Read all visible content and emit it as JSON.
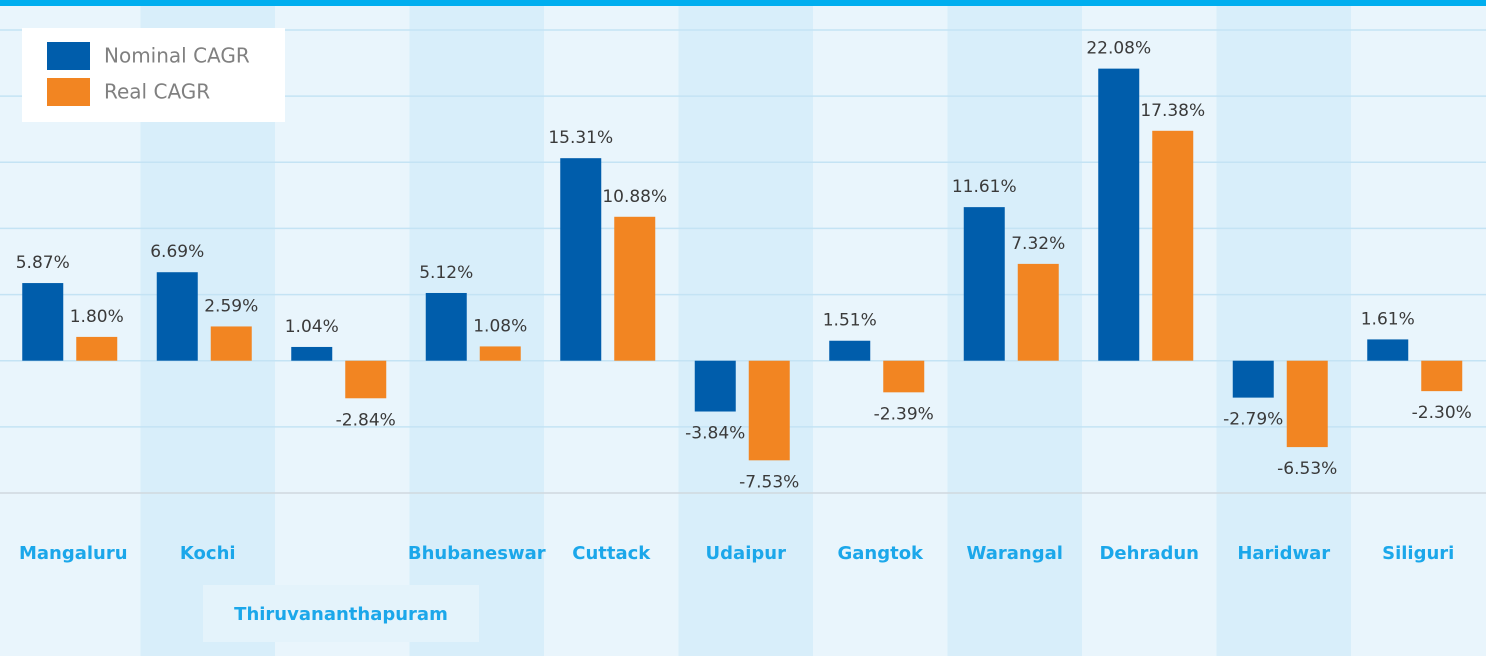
{
  "chart_data": {
    "type": "bar",
    "categories": [
      "Mangaluru",
      "Kochi",
      "Thiruvananthapuram",
      "Bhubaneswar",
      "Cuttack",
      "Udaipur",
      "Gangtok",
      "Warangal",
      "Dehradun",
      "Haridwar",
      "Siliguri"
    ],
    "series": [
      {
        "name": "Nominal CAGR",
        "color": "#005dab",
        "values": [
          5.87,
          6.69,
          1.04,
          5.12,
          15.31,
          -3.84,
          1.51,
          11.61,
          22.08,
          -2.79,
          1.61
        ],
        "value_labels": [
          "5.87%",
          "6.69%",
          "1.04%",
          "5.12%",
          "15.31%",
          "-3.84%",
          "1.51%",
          "11.61%",
          "22.08%",
          "-2.79%",
          "1.61%"
        ]
      },
      {
        "name": "Real CAGR",
        "color": "#f28522",
        "values": [
          1.8,
          2.59,
          -2.84,
          1.08,
          10.88,
          -7.53,
          -2.39,
          7.32,
          17.38,
          -6.53,
          -2.3
        ],
        "value_labels": [
          "1.80%",
          "2.59%",
          "-2.84%",
          "1.08%",
          "10.88%",
          "-7.53%",
          "-2.39%",
          "7.32%",
          "17.38%",
          "-6.53%",
          "-2.30%"
        ]
      }
    ],
    "ylim": [
      -10,
      25
    ],
    "yticks": [
      -10,
      -5,
      0,
      5,
      10,
      15,
      20,
      25
    ],
    "grid": true,
    "legend": "upper left"
  }
}
